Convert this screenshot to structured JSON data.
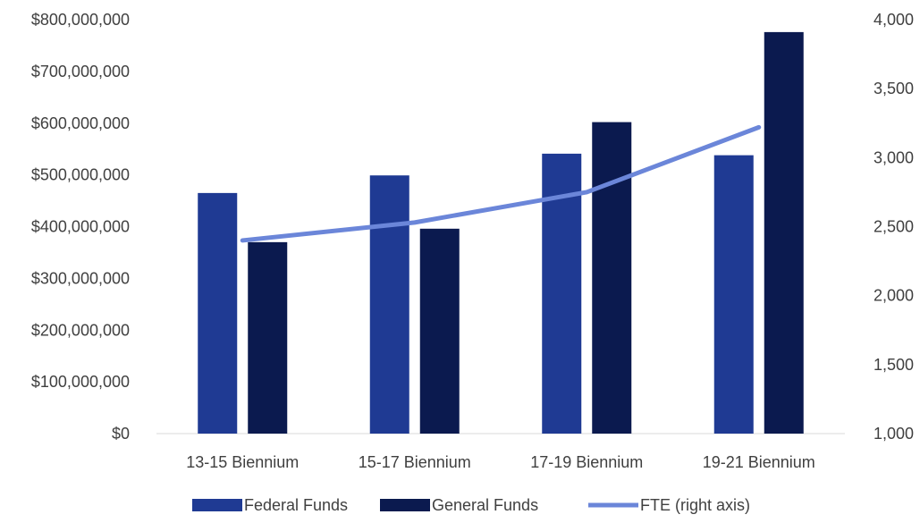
{
  "chart_data": {
    "type": "bar",
    "categories": [
      "13-15 Biennium",
      "15-17 Biennium",
      "17-19 Biennium",
      "19-21 Biennium"
    ],
    "series": [
      {
        "name": "Federal Funds",
        "kind": "bar",
        "axis": "left",
        "color": "#1f3a93",
        "values": [
          465000000,
          499000000,
          541000000,
          538000000
        ]
      },
      {
        "name": "General Funds",
        "kind": "bar",
        "axis": "left",
        "color": "#0b1a4f",
        "values": [
          370000000,
          396000000,
          602000000,
          776000000
        ]
      },
      {
        "name": "FTE (right axis)",
        "kind": "line",
        "axis": "right",
        "color": "#6b86d9",
        "values": [
          2400,
          2530,
          2750,
          3220
        ]
      }
    ],
    "left_axis": {
      "min": 0,
      "max": 800000000,
      "ticks": [
        0,
        100000000,
        200000000,
        300000000,
        400000000,
        500000000,
        600000000,
        700000000,
        800000000
      ],
      "tick_labels": [
        "$0",
        "$100,000,000",
        "$200,000,000",
        "$300,000,000",
        "$400,000,000",
        "$500,000,000",
        "$600,000,000",
        "$700,000,000",
        "$800,000,000"
      ]
    },
    "right_axis": {
      "min": 1000,
      "max": 4000,
      "ticks": [
        1000,
        1500,
        2000,
        2500,
        3000,
        3500,
        4000
      ],
      "tick_labels": [
        "1,000",
        "1,500",
        "2,000",
        "2,500",
        "3,000",
        "3,500",
        "4,000"
      ]
    },
    "grid": false,
    "legend_position": "bottom"
  }
}
